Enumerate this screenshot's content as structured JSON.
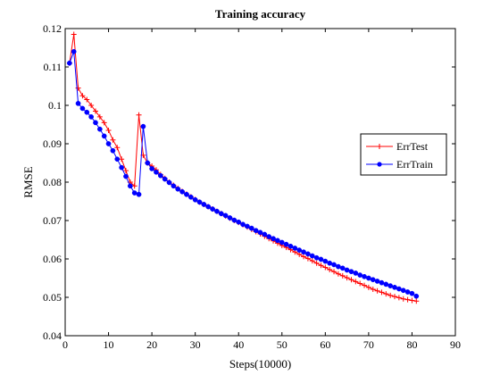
{
  "chart_data": {
    "type": "line",
    "title": "Training accuracy",
    "xlabel": "Steps(10000)",
    "ylabel": "RMSE",
    "xlim": [
      0,
      90
    ],
    "ylim": [
      0.04,
      0.12
    ],
    "xticks": [
      0,
      10,
      20,
      30,
      40,
      50,
      60,
      70,
      80,
      90
    ],
    "yticks": [
      0.04,
      0.05,
      0.06,
      0.07,
      0.08,
      0.09,
      0.1,
      0.11,
      0.12
    ],
    "ytick_labels": [
      "0.04",
      "0.05",
      "0.06",
      "0.07",
      "0.08",
      "0.09",
      "0.1",
      "0.11",
      "0.12"
    ],
    "grid": false,
    "legend_position": "right",
    "x": [
      1,
      2,
      3,
      4,
      5,
      6,
      7,
      8,
      9,
      10,
      11,
      12,
      13,
      14,
      15,
      16,
      17,
      18,
      19,
      20,
      21,
      22,
      23,
      24,
      25,
      26,
      27,
      28,
      29,
      30,
      31,
      32,
      33,
      34,
      35,
      36,
      37,
      38,
      39,
      40,
      41,
      42,
      43,
      44,
      45,
      46,
      47,
      48,
      49,
      50,
      51,
      52,
      53,
      54,
      55,
      56,
      57,
      58,
      59,
      60,
      61,
      62,
      63,
      64,
      65,
      66,
      67,
      68,
      69,
      70,
      71,
      72,
      73,
      74,
      75,
      76,
      77,
      78,
      79,
      80,
      81
    ],
    "series": [
      {
        "name": "ErrTest",
        "color": "#ff0000",
        "marker": "plus",
        "values": [
          0.111,
          0.1185,
          0.1045,
          0.1025,
          0.1015,
          0.1,
          0.0985,
          0.097,
          0.0955,
          0.0935,
          0.091,
          0.089,
          0.086,
          0.083,
          0.08,
          0.079,
          0.0975,
          0.087,
          0.085,
          0.0842,
          0.0832,
          0.082,
          0.081,
          0.08,
          0.0792,
          0.0784,
          0.0776,
          0.0769,
          0.0762,
          0.0755,
          0.0748,
          0.0742,
          0.0736,
          0.073,
          0.0724,
          0.0718,
          0.0712,
          0.0706,
          0.07,
          0.0695,
          0.0689,
          0.0683,
          0.0677,
          0.0671,
          0.0665,
          0.0659,
          0.0653,
          0.0647,
          0.0641,
          0.0635,
          0.063,
          0.0624,
          0.0618,
          0.0612,
          0.0606,
          0.0601,
          0.0595,
          0.0589,
          0.0583,
          0.0578,
          0.0572,
          0.0567,
          0.0561,
          0.0556,
          0.0551,
          0.0546,
          0.0541,
          0.0536,
          0.0531,
          0.0526,
          0.0521,
          0.0517,
          0.0513,
          0.0509,
          0.0505,
          0.0502,
          0.0499,
          0.0496,
          0.0494,
          0.0492,
          0.049
        ]
      },
      {
        "name": "ErrTrain",
        "color": "#0000ff",
        "marker": "dot",
        "values": [
          0.111,
          0.114,
          0.1005,
          0.0992,
          0.0982,
          0.097,
          0.0955,
          0.0938,
          0.092,
          0.09,
          0.0882,
          0.086,
          0.0838,
          0.0815,
          0.079,
          0.0772,
          0.0768,
          0.0945,
          0.085,
          0.0835,
          0.0826,
          0.0817,
          0.0808,
          0.0799,
          0.079,
          0.0782,
          0.0775,
          0.0768,
          0.0761,
          0.0754,
          0.0748,
          0.0742,
          0.0736,
          0.073,
          0.0724,
          0.0718,
          0.0713,
          0.0707,
          0.0701,
          0.0696,
          0.069,
          0.0685,
          0.068,
          0.0674,
          0.0669,
          0.0664,
          0.0658,
          0.0653,
          0.0648,
          0.0643,
          0.0638,
          0.0633,
          0.0628,
          0.0623,
          0.0618,
          0.0613,
          0.0608,
          0.0603,
          0.0599,
          0.0594,
          0.0589,
          0.0585,
          0.058,
          0.0576,
          0.0571,
          0.0567,
          0.0563,
          0.0558,
          0.0554,
          0.055,
          0.0546,
          0.0542,
          0.0538,
          0.0534,
          0.053,
          0.0526,
          0.0522,
          0.0518,
          0.0514,
          0.051,
          0.0503
        ]
      }
    ]
  }
}
